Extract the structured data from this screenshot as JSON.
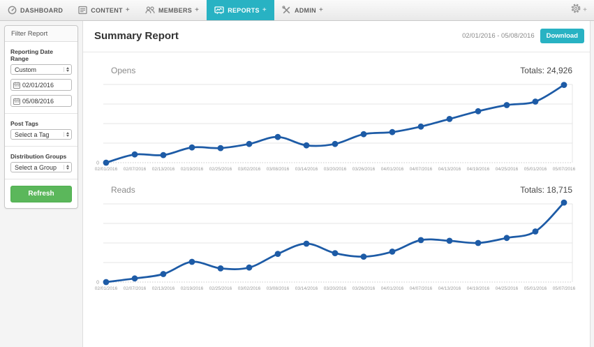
{
  "colors": {
    "accent_teal": "#28b2c3",
    "button_green": "#5bb75b",
    "line_blue": "#1d5ba6"
  },
  "nav": {
    "items": [
      {
        "label": "DASHBOARD",
        "icon": "dashboard-icon"
      },
      {
        "label": "CONTENT",
        "plus": "+",
        "icon": "content-icon"
      },
      {
        "label": "MEMBERS",
        "plus": "+",
        "icon": "members-icon"
      },
      {
        "label": "REPORTS",
        "plus": "+",
        "icon": "reports-icon",
        "active": true
      },
      {
        "label": "ADMIN",
        "plus": "+",
        "icon": "admin-icon"
      }
    ],
    "settings_plus": "+"
  },
  "sidebar": {
    "title": "Filter Report",
    "reporting_date_range": {
      "label": "Reporting Date Range",
      "select_value": "Custom",
      "start_date": "02/01/2016",
      "end_date": "05/08/2016"
    },
    "post_tags": {
      "label": "Post Tags",
      "select_value": "Select a Tag"
    },
    "distribution_groups": {
      "label": "Distribution Groups",
      "select_value": "Select a Group"
    },
    "refresh_label": "Refresh"
  },
  "header": {
    "title": "Summary Report",
    "date_range": "02/01/2016 - 05/08/2016",
    "download_label": "Download"
  },
  "chart_data": [
    {
      "type": "line",
      "title": "Opens",
      "totals_label": "Totals: 24,926",
      "total": 24926,
      "x": [
        "02/01/2016",
        "02/07/2016",
        "02/13/2016",
        "02/19/2016",
        "02/25/2016",
        "03/02/2016",
        "03/08/2016",
        "03/14/2016",
        "03/20/2016",
        "03/26/2016",
        "04/01/2016",
        "04/07/2016",
        "04/13/2016",
        "04/19/2016",
        "04/25/2016",
        "05/01/2016",
        "05/07/2016"
      ],
      "values": [
        0,
        400,
        370,
        740,
        710,
        910,
        1250,
        840,
        910,
        1385,
        1485,
        1755,
        2125,
        2500,
        2800,
        2970,
        3780
      ],
      "y_zero_label": "0",
      "ylim": [
        0,
        3800
      ],
      "gridline_intervals": 4,
      "grid": true,
      "legend": false
    },
    {
      "type": "line",
      "title": "Reads",
      "totals_label": "Totals: 18,715",
      "total": 18715,
      "x": [
        "02/01/2016",
        "02/07/2016",
        "02/13/2016",
        "02/19/2016",
        "02/25/2016",
        "03/02/2016",
        "03/08/2016",
        "03/14/2016",
        "03/20/2016",
        "03/26/2016",
        "04/01/2016",
        "04/07/2016",
        "04/13/2016",
        "04/19/2016",
        "04/25/2016",
        "05/01/2016",
        "05/07/2016"
      ],
      "values": [
        0,
        135,
        295,
        745,
        505,
        535,
        1040,
        1415,
        1065,
        935,
        1120,
        1545,
        1520,
        1440,
        1625,
        1865,
        2930
      ],
      "y_zero_label": "0",
      "ylim": [
        0,
        2880
      ],
      "gridline_intervals": 4,
      "grid": true,
      "legend": false
    }
  ]
}
